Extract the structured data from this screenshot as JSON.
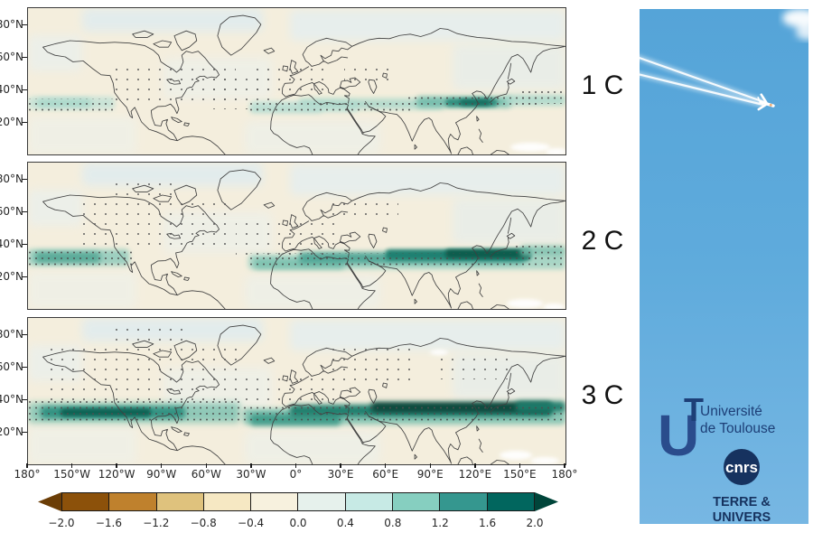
{
  "panels": [
    {
      "label": "1 C"
    },
    {
      "label": "2 C"
    },
    {
      "label": "3 C"
    }
  ],
  "axes": {
    "x_ticks": [
      "180°",
      "150°W",
      "120°W",
      "90°W",
      "60°W",
      "30°W",
      "0°",
      "30°E",
      "60°E",
      "90°E",
      "120°E",
      "150°E",
      "180°"
    ],
    "y_ticks": [
      "80°N",
      "60°N",
      "40°N",
      "20°N"
    ]
  },
  "colorbar": {
    "tick_labels": [
      "−2.0",
      "−1.6",
      "−1.2",
      "−0.8",
      "−0.4",
      "0.0",
      "0.4",
      "0.8",
      "1.2",
      "1.6",
      "2.0"
    ],
    "colors": [
      "#8c510a",
      "#bf812d",
      "#dfc27d",
      "#f6e8c3",
      "#f7f1de",
      "#e6f1ec",
      "#c7eae5",
      "#86cfc0",
      "#35978f",
      "#01665e"
    ],
    "under_color": "#6b3d06",
    "over_color": "#00453a"
  },
  "photo": {
    "sky_color": "#5ba9dc",
    "logo_navy": "#1d3f77",
    "ut_u": "U",
    "ut_t": "T",
    "university_line1": "Université",
    "university_line2": "de Toulouse",
    "cnrs": "cnrs",
    "org_line1": "TERRE &",
    "org_line2": "UNIVERS"
  },
  "chart_data": {
    "type": "heatmap",
    "layout": "3 stacked longitude–latitude map panels with shared colorbar; photo of aircraft contrails at right",
    "x_tick_labels": [
      "180°",
      "150°W",
      "120°W",
      "90°W",
      "60°W",
      "30°W",
      "0°",
      "30°E",
      "60°E",
      "90°E",
      "120°E",
      "150°E",
      "180°"
    ],
    "y_tick_labels": [
      "80°N",
      "60°N",
      "40°N",
      "20°N"
    ],
    "x_range_deg": [
      -180,
      180
    ],
    "y_range_deg": [
      0,
      90
    ],
    "colorbar_levels": [
      -2.0,
      -1.6,
      -1.2,
      -0.8,
      -0.4,
      0.0,
      0.4,
      0.8,
      1.2,
      1.6,
      2.0
    ],
    "colorbar_colors": [
      "#8c510a",
      "#bf812d",
      "#dfc27d",
      "#f6e8c3",
      "#f7f1de",
      "#e6f1ec",
      "#c7eae5",
      "#86cfc0",
      "#35978f",
      "#01665e"
    ],
    "panels": [
      {
        "label": "1 C",
        "band_latitude_deg": [
          25,
          38
        ],
        "summary": "Weak positive (teal) zonal band ~0.4–1.2; maximum ≈1.2–1.6 near 110–145°E (Japan/East China); lighter band over NE Pacific; stippled where significant."
      },
      {
        "label": "2 C",
        "band_latitude_deg": [
          24,
          38
        ],
        "summary": "Moderate positive band ~0.8–1.6 from North Africa across Asia; maximum ≈1.6–2.0 at 100–150°E; secondary band ≈0.8–1.2 over eastern Pacific 180–130°W; widespread stippling."
      },
      {
        "label": "3 C",
        "band_latitude_deg": [
          22,
          40
        ],
        "summary": "Strong circumglobal positive band; ≥2.0 (saturated dark teal) 60°E–180°E and strong band 180–110°W across Pacific/US; heavy stippling; weak negative (tan) background patches."
      }
    ],
    "stippling": "small dark dots mark regions of the anomaly band and scattered background grid points"
  }
}
